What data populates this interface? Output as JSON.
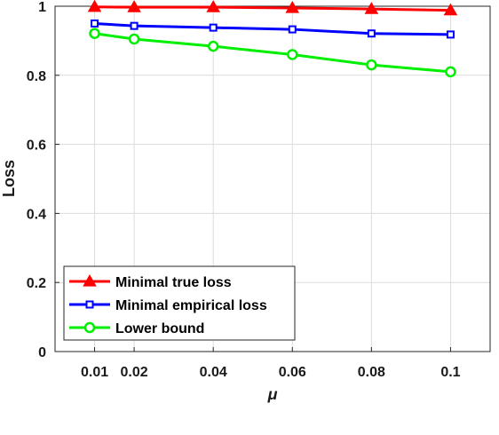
{
  "chart_data": {
    "type": "line",
    "x": [
      0.01,
      0.02,
      0.04,
      0.06,
      0.08,
      0.1
    ],
    "x_tick_labels": [
      "0.01",
      "0.02",
      "0.04",
      "0.06",
      "0.08",
      "0.1"
    ],
    "xlabel": "μ",
    "ylabel": "Loss",
    "ylim": [
      0,
      1
    ],
    "y_ticks": [
      0,
      0.2,
      0.4,
      0.6,
      0.8,
      1
    ],
    "y_tick_labels": [
      "0",
      "0.2",
      "0.4",
      "0.6",
      "0.8",
      "1"
    ],
    "grid": true,
    "legend_position": "bottom-left",
    "series": [
      {
        "name": "Minimal true loss",
        "values": [
          0.998,
          0.997,
          0.997,
          0.995,
          0.992,
          0.988
        ],
        "color": "#ff0000",
        "marker": "triangle"
      },
      {
        "name": "Minimal empirical loss",
        "values": [
          0.95,
          0.943,
          0.938,
          0.933,
          0.921,
          0.918
        ],
        "color": "#0000ff",
        "marker": "square"
      },
      {
        "name": "Lower bound",
        "values": [
          0.921,
          0.905,
          0.884,
          0.86,
          0.83,
          0.81
        ],
        "color": "#00ee00",
        "marker": "circle"
      }
    ]
  }
}
